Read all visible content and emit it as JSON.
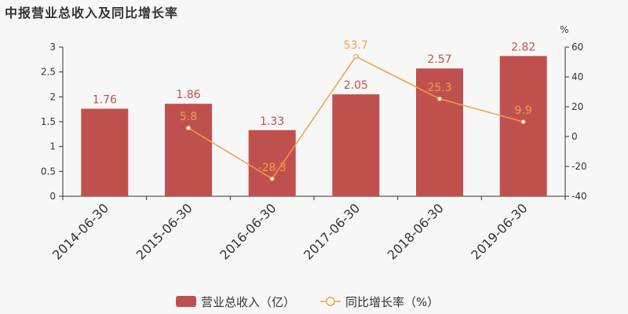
{
  "title": "中报营业总收入及同比增长率",
  "colors": {
    "bar": "#c0504d",
    "line": "#f0a04b",
    "axis": "#333333"
  },
  "chart_data": {
    "type": "bar",
    "categories": [
      "2014-06-30",
      "2015-06-30",
      "2016-06-30",
      "2017-06-30",
      "2018-06-30",
      "2019-06-30"
    ],
    "y_left": {
      "ticks": [
        "0",
        "0.5",
        "1",
        "1.5",
        "2",
        "2.5",
        "3"
      ],
      "range": [
        0,
        3
      ]
    },
    "y_right": {
      "unit": "%",
      "ticks": [
        "-40",
        "-20",
        "0",
        "20",
        "40",
        "60"
      ],
      "range": [
        -40,
        60
      ]
    },
    "series": [
      {
        "name": "营业总收入（亿）",
        "type": "bar",
        "axis": "left",
        "values": [
          1.76,
          1.86,
          1.33,
          2.05,
          2.57,
          2.82
        ],
        "labels": [
          "1.76",
          "1.86",
          "1.33",
          "2.05",
          "2.57",
          "2.82"
        ]
      },
      {
        "name": "同比增长率（%）",
        "type": "line",
        "axis": "right",
        "values": [
          null,
          5.8,
          -28.3,
          53.7,
          25.3,
          9.9
        ],
        "labels": [
          "",
          "5.8",
          "-28.3",
          "53.7",
          "25.3",
          "9.9"
        ]
      }
    ],
    "legend_position": "bottom"
  }
}
